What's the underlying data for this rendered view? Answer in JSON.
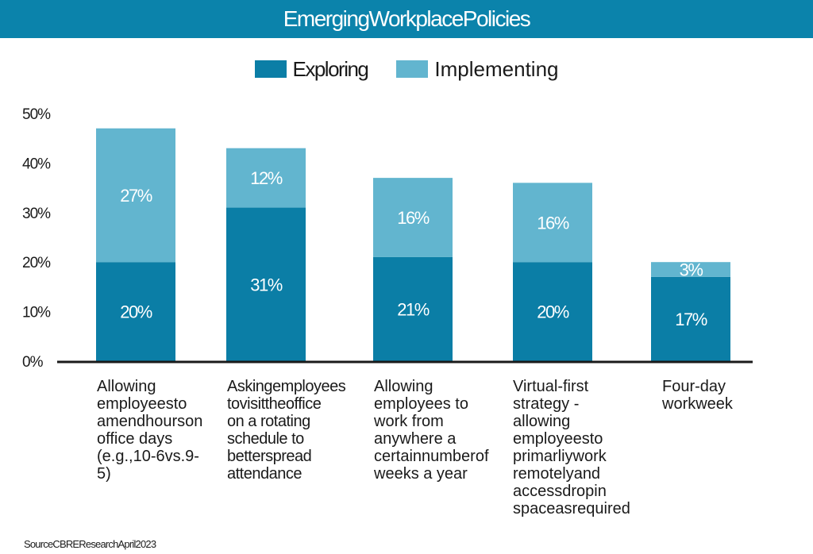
{
  "title": "EmergingWorkplacePolicies",
  "source": "SourceCBREResearchApril2023",
  "colors": {
    "header": "#0b83ab",
    "exploring": "#0b7ea6",
    "implementing": "#62b5cf"
  },
  "legend": {
    "exploring": "Exploring",
    "implementing": "Implementing"
  },
  "categories": [
    "Allowing employeesto amendhourson office days (e.g.,10-6vs.9-5)",
    "Askingemployees tovisittheoffice on a rotating schedule to betterspread attendance",
    "Allowing employees to work from anywhere a certainnumberof weeks a year",
    "Virtual-first strategy - allowing employeesto primarliywork remotelyand accessdropin spaceasrequired",
    "Four-day workweek"
  ],
  "chart_data": {
    "type": "bar",
    "stacked": true,
    "categories": [
      "Allowing employeesto amendhourson office days (e.g.,10-6vs.9-5)",
      "Askingemployees tovisittheoffice on a rotating schedule to betterspread attendance",
      "Allowing employees to work from anywhere a certainnumberof weeks a year",
      "Virtual-first strategy - allowing employeesto primarliywork remotelyand accessdropin spaceasrequired",
      "Four-day workweek"
    ],
    "series": [
      {
        "name": "Exploring",
        "values": [
          20,
          31,
          21,
          20,
          17
        ],
        "labels": [
          "20%",
          "31%",
          "21%",
          "20%",
          "17%"
        ]
      },
      {
        "name": "Implementing",
        "values": [
          27,
          12,
          16,
          16,
          3
        ],
        "labels": [
          "27%",
          "12%",
          "16%",
          "16%",
          "3%"
        ]
      }
    ],
    "yticks": [
      "0%",
      "10%",
      "20%",
      "30%",
      "40%",
      "50%"
    ],
    "ylim": [
      0,
      50
    ],
    "grid": false,
    "legend_position": "top-center",
    "title": "EmergingWorkplacePolicies"
  }
}
